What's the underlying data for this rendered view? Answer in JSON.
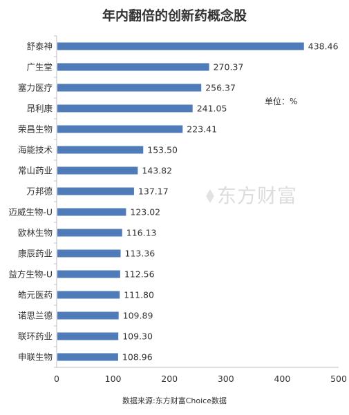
{
  "title": "年内翻倍的创新药概念股",
  "unit_label": "单位：%",
  "watermark": "东方财富",
  "source": "数据来源:东方财富Choice数据",
  "colors": {
    "bar": "#4f7cb8",
    "axis": "#bfbfbf",
    "text": "#333333"
  },
  "chart_data": {
    "type": "bar",
    "orientation": "horizontal",
    "title": "年内翻倍的创新药概念股",
    "categories": [
      "舒泰神",
      "广生堂",
      "塞力医疗",
      "昂利康",
      "荣昌生物",
      "海能技术",
      "常山药业",
      "万邦德",
      "迈威生物-U",
      "欧林生物",
      "康辰药业",
      "益方生物-U",
      "皓元医药",
      "诺思兰德",
      "联环药业",
      "申联生物"
    ],
    "values": [
      438.46,
      270.37,
      256.37,
      241.05,
      223.41,
      153.5,
      143.82,
      137.17,
      123.02,
      116.13,
      113.36,
      112.56,
      111.8,
      109.89,
      109.3,
      108.96
    ],
    "value_labels": [
      "438.46",
      "270.37",
      "256.37",
      "241.05",
      "223.41",
      "153.50",
      "143.82",
      "137.17",
      "123.02",
      "116.13",
      "113.36",
      "112.56",
      "111.80",
      "109.89",
      "109.30",
      "108.96"
    ],
    "xlim": [
      0,
      500
    ],
    "xticks": [
      "0",
      "100",
      "200",
      "300",
      "400",
      "500"
    ],
    "grid": false,
    "legend": "none"
  }
}
